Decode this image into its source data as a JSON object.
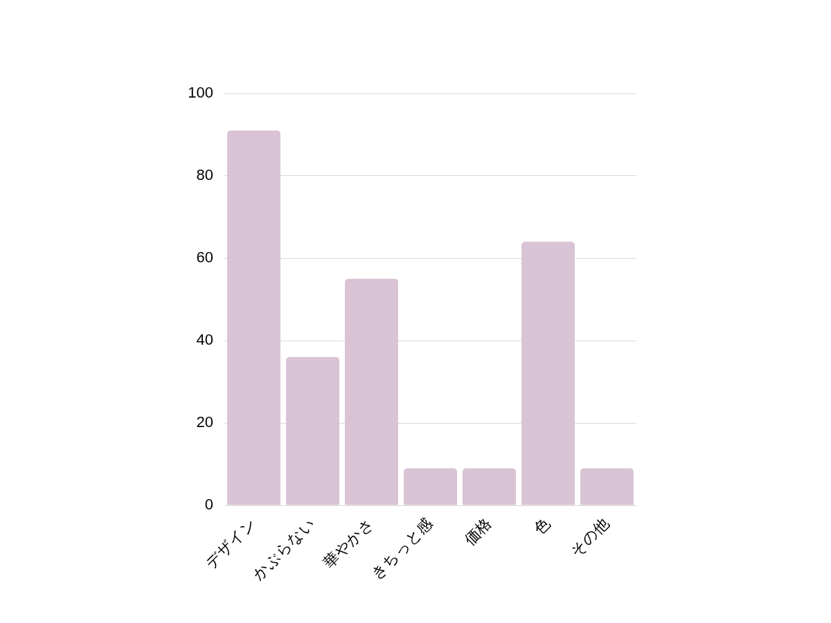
{
  "chart_data": {
    "type": "bar",
    "categories": [
      "デザイン",
      "かぶらない",
      "華やかさ",
      "きちっと感",
      "価格",
      "色",
      "その他"
    ],
    "values": [
      91,
      36,
      55,
      9,
      9,
      64,
      9
    ],
    "color": "#d9c3d5",
    "ylim": [
      0,
      100
    ],
    "yticks": [
      0,
      20,
      40,
      60,
      80,
      100
    ],
    "grid": "y"
  }
}
